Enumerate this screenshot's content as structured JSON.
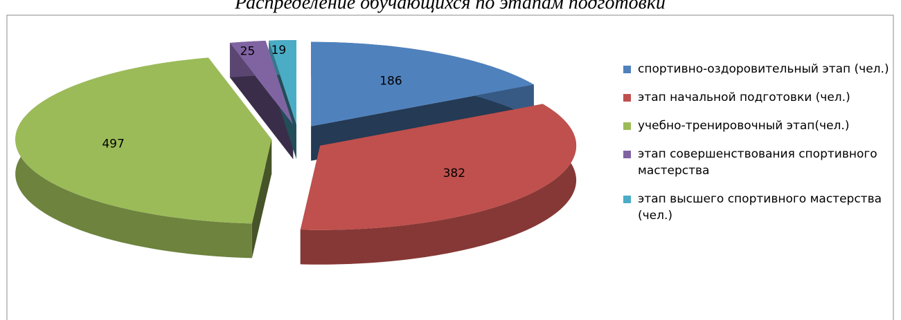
{
  "chart_data": {
    "type": "pie",
    "title": "Распределение обучающихся по этапам подготовки",
    "categories": [
      "спортивно-оздоровительный этап (чел.)",
      "этап начальной подготовки (чел.)",
      "учебно-тренировочный этап(чел.)",
      "этап совершенствования спортивного мастерства",
      "этап высшего спортивного мастерства (чел.)"
    ],
    "values": [
      186,
      382,
      497,
      25,
      19
    ],
    "colors": [
      "#4f81bd",
      "#c0504d",
      "#9bbb59",
      "#8064a2",
      "#4bacc6"
    ],
    "legend": "right"
  }
}
